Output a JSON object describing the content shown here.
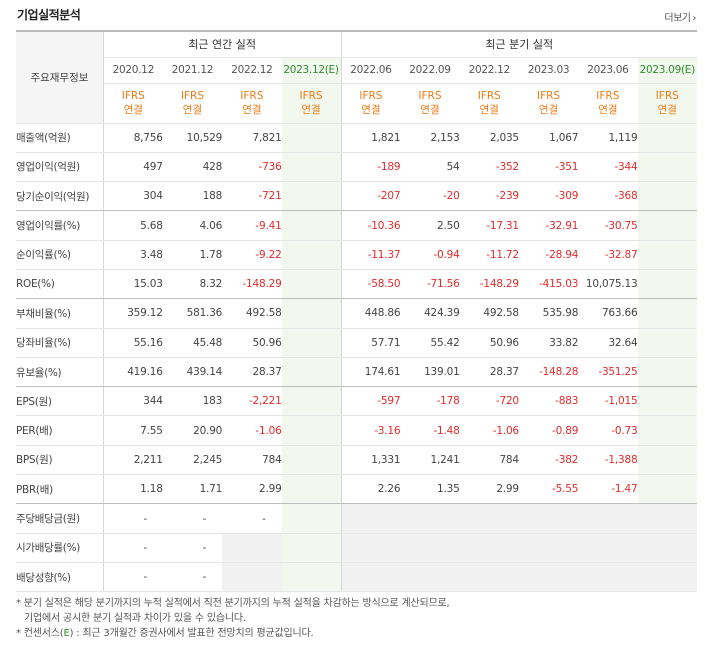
{
  "header": {
    "title": "기업실적분석",
    "more_label": "더보기",
    "more_icon": "chevron-right-icon"
  },
  "table": {
    "label_header": "주요재무정보",
    "group_annual": "최근 연간 실적",
    "group_quarter": "최근 분기 실적",
    "periods": [
      "2020.12",
      "2021.12",
      "2022.12",
      "2023.12(E)",
      "2022.06",
      "2022.09",
      "2022.12",
      "2023.03",
      "2023.06",
      "2023.09(E)"
    ],
    "standard_line1": "IFRS",
    "standard_line2": "연결",
    "rows": [
      {
        "label": "매출액(억원)",
        "values": [
          "8,756",
          "10,529",
          "7,821",
          "",
          "1,821",
          "2,153",
          "2,035",
          "1,067",
          "1,119",
          ""
        ]
      },
      {
        "label": "영업이익(억원)",
        "values": [
          "497",
          "428",
          "-736",
          "",
          "-189",
          "54",
          "-352",
          "-351",
          "-344",
          ""
        ]
      },
      {
        "label": "당기순이익(억원)",
        "values": [
          "304",
          "188",
          "-721",
          "",
          "-207",
          "-20",
          "-239",
          "-309",
          "-368",
          ""
        ]
      },
      {
        "label": "영업이익률(%)",
        "values": [
          "5.68",
          "4.06",
          "-9.41",
          "",
          "-10.36",
          "2.50",
          "-17.31",
          "-32.91",
          "-30.75",
          ""
        ]
      },
      {
        "label": "순이익률(%)",
        "values": [
          "3.48",
          "1.78",
          "-9.22",
          "",
          "-11.37",
          "-0.94",
          "-11.72",
          "-28.94",
          "-32.87",
          ""
        ]
      },
      {
        "label": "ROE(%)",
        "values": [
          "15.03",
          "8.32",
          "-148.29",
          "",
          "-58.50",
          "-71.56",
          "-148.29",
          "-415.03",
          "10,075.13",
          ""
        ]
      },
      {
        "label": "부채비율(%)",
        "values": [
          "359.12",
          "581.36",
          "492.58",
          "",
          "448.86",
          "424.39",
          "492.58",
          "535.98",
          "763.66",
          ""
        ]
      },
      {
        "label": "당좌비율(%)",
        "values": [
          "55.16",
          "45.48",
          "50.96",
          "",
          "57.71",
          "55.42",
          "50.96",
          "33.82",
          "32.64",
          ""
        ]
      },
      {
        "label": "유보율(%)",
        "values": [
          "419.16",
          "439.14",
          "28.37",
          "",
          "174.61",
          "139.01",
          "28.37",
          "-148.28",
          "-351.25",
          ""
        ]
      },
      {
        "label": "EPS(원)",
        "values": [
          "344",
          "183",
          "-2,221",
          "",
          "-597",
          "-178",
          "-720",
          "-883",
          "-1,015",
          ""
        ]
      },
      {
        "label": "PER(배)",
        "values": [
          "7.55",
          "20.90",
          "-1.06",
          "",
          "-3.16",
          "-1.48",
          "-1.06",
          "-0.89",
          "-0.73",
          ""
        ]
      },
      {
        "label": "BPS(원)",
        "values": [
          "2,211",
          "2,245",
          "784",
          "",
          "1,331",
          "1,241",
          "784",
          "-382",
          "-1,388",
          ""
        ]
      },
      {
        "label": "PBR(배)",
        "values": [
          "1.18",
          "1.71",
          "2.99",
          "",
          "2.26",
          "1.35",
          "2.99",
          "-5.55",
          "-1.47",
          ""
        ]
      },
      {
        "label": "주당배당금(원)",
        "values": [
          "-",
          "-",
          "-",
          "",
          "",
          "",
          "",
          "",
          "",
          ""
        ]
      },
      {
        "label": "시가배당률(%)",
        "values": [
          "-",
          "-",
          "",
          "",
          "",
          "",
          "",
          "",
          "",
          ""
        ]
      },
      {
        "label": "배당성향(%)",
        "values": [
          "-",
          "-",
          "",
          "",
          "",
          "",
          "",
          "",
          "",
          ""
        ]
      }
    ]
  },
  "notes": {
    "line1": "* 분기 실적은 해당 분기까지의 누적 실적에서 직전 분기까지의 누적 실적을 차감하는 방식으로 계산되므로,",
    "line2": "기업에서 공시한 분기 실적과 차이가 있을 수 있습니다.",
    "line3_prefix": "* 컨센서스(",
    "line3_e": "E",
    "line3_suffix": ") : 최근 3개월간 증권사에서 발표한 전망치의 평균값입니다."
  }
}
